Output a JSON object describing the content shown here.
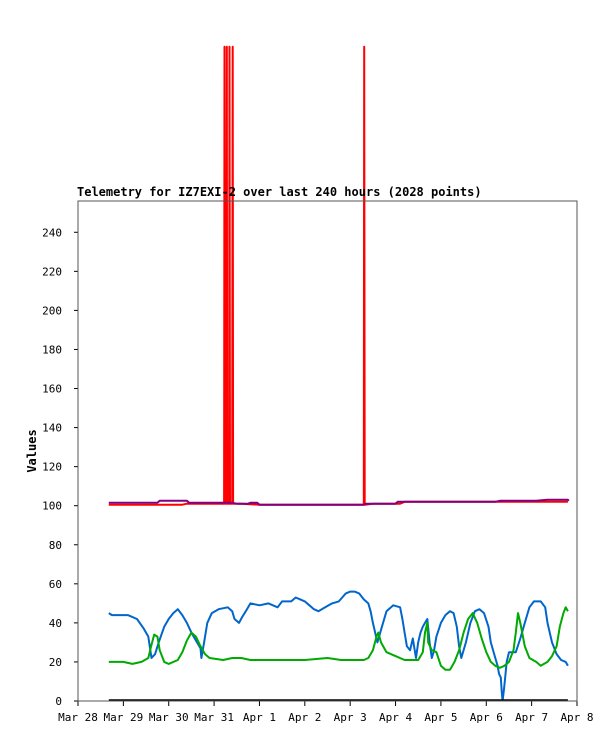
{
  "chart_data": {
    "type": "line",
    "title": "Telemetry for IZ7EXI-2 over last 240 hours (2028 points)",
    "ylabel": "Values",
    "xlabel": "",
    "ylim": [
      0,
      255
    ],
    "xlim": [
      0,
      11
    ],
    "y_ticks": [
      0,
      20,
      40,
      60,
      80,
      100,
      120,
      140,
      160,
      180,
      200,
      220,
      240
    ],
    "x_ticks": [
      {
        "x": 0,
        "label": "Mar 28"
      },
      {
        "x": 1,
        "label": "Mar 29"
      },
      {
        "x": 2,
        "label": "Mar 30"
      },
      {
        "x": 3,
        "label": "Mar 31"
      },
      {
        "x": 4,
        "label": "Apr 1"
      },
      {
        "x": 5,
        "label": "Apr 2"
      },
      {
        "x": 6,
        "label": "Apr 3"
      },
      {
        "x": 7,
        "label": "Apr 4"
      },
      {
        "x": 8,
        "label": "Apr 5"
      },
      {
        "x": 9,
        "label": "Apr 6"
      },
      {
        "x": 10,
        "label": "Apr 7"
      },
      {
        "x": 11,
        "label": "Apr 8"
      }
    ],
    "series": [
      {
        "color": "#ff0000",
        "points": [
          [
            0.68,
            100.5
          ],
          [
            1.8,
            100.5
          ],
          [
            2.3,
            100.5
          ],
          [
            2.4,
            101
          ],
          [
            3.0,
            101
          ],
          [
            3.22,
            101
          ],
          [
            3.23,
            335
          ],
          [
            3.24,
            101
          ],
          [
            3.27,
            101
          ],
          [
            3.28,
            335
          ],
          [
            3.29,
            101
          ],
          [
            3.33,
            101
          ],
          [
            3.34,
            335
          ],
          [
            3.35,
            101
          ],
          [
            3.4,
            101
          ],
          [
            3.41,
            335
          ],
          [
            3.42,
            101
          ],
          [
            3.6,
            101
          ],
          [
            4.0,
            100.5
          ],
          [
            6.3,
            100.5
          ],
          [
            6.31,
            335
          ],
          [
            6.32,
            100.5
          ],
          [
            6.5,
            101
          ],
          [
            7.1,
            101
          ],
          [
            7.2,
            102
          ],
          [
            9.0,
            102
          ],
          [
            9.5,
            102
          ],
          [
            10.4,
            102
          ],
          [
            10.8,
            102
          ]
        ]
      },
      {
        "color": "#800080",
        "points": [
          [
            0.68,
            101.5
          ],
          [
            1.75,
            101.5
          ],
          [
            1.8,
            102.5
          ],
          [
            2.4,
            102.5
          ],
          [
            2.45,
            101.5
          ],
          [
            3.4,
            101.5
          ],
          [
            3.5,
            101
          ],
          [
            3.75,
            101
          ],
          [
            3.8,
            101.5
          ],
          [
            3.95,
            101.5
          ],
          [
            4.0,
            100.5
          ],
          [
            6.3,
            100.5
          ],
          [
            6.35,
            101
          ],
          [
            7.0,
            101
          ],
          [
            7.05,
            102
          ],
          [
            9.2,
            102
          ],
          [
            9.3,
            102.5
          ],
          [
            10.1,
            102.5
          ],
          [
            10.35,
            103
          ],
          [
            10.8,
            103
          ],
          [
            10.82,
            102.5
          ]
        ]
      },
      {
        "color": "#0066cc",
        "points": [
          [
            0.68,
            45
          ],
          [
            0.75,
            44
          ],
          [
            1.1,
            44
          ],
          [
            1.3,
            42
          ],
          [
            1.45,
            37
          ],
          [
            1.55,
            33
          ],
          [
            1.62,
            22
          ],
          [
            1.7,
            24
          ],
          [
            1.78,
            30
          ],
          [
            1.9,
            38
          ],
          [
            2.0,
            42
          ],
          [
            2.1,
            45
          ],
          [
            2.2,
            47
          ],
          [
            2.3,
            44
          ],
          [
            2.4,
            40
          ],
          [
            2.5,
            35
          ],
          [
            2.6,
            31
          ],
          [
            2.7,
            27
          ],
          [
            2.72,
            22
          ],
          [
            2.78,
            30
          ],
          [
            2.85,
            40
          ],
          [
            2.95,
            45
          ],
          [
            3.1,
            47
          ],
          [
            3.3,
            48
          ],
          [
            3.4,
            46
          ],
          [
            3.45,
            42
          ],
          [
            3.55,
            40
          ],
          [
            3.62,
            43
          ],
          [
            3.7,
            46
          ],
          [
            3.8,
            50
          ],
          [
            4.0,
            49
          ],
          [
            4.2,
            50
          ],
          [
            4.4,
            48
          ],
          [
            4.5,
            51
          ],
          [
            4.7,
            51
          ],
          [
            4.8,
            53
          ],
          [
            4.9,
            52
          ],
          [
            5.0,
            51
          ],
          [
            5.1,
            49
          ],
          [
            5.2,
            47
          ],
          [
            5.3,
            46
          ],
          [
            5.45,
            48
          ],
          [
            5.6,
            50
          ],
          [
            5.75,
            51
          ],
          [
            5.9,
            55
          ],
          [
            6.0,
            56
          ],
          [
            6.1,
            56
          ],
          [
            6.2,
            55
          ],
          [
            6.3,
            52
          ],
          [
            6.4,
            50
          ],
          [
            6.45,
            46
          ],
          [
            6.5,
            40
          ],
          [
            6.6,
            30
          ],
          [
            6.7,
            38
          ],
          [
            6.8,
            46
          ],
          [
            6.95,
            49
          ],
          [
            7.1,
            48
          ],
          [
            7.15,
            42
          ],
          [
            7.2,
            35
          ],
          [
            7.25,
            28
          ],
          [
            7.32,
            26
          ],
          [
            7.38,
            32
          ],
          [
            7.45,
            22
          ],
          [
            7.5,
            30
          ],
          [
            7.55,
            35
          ],
          [
            7.6,
            38
          ],
          [
            7.65,
            40
          ],
          [
            7.7,
            42
          ],
          [
            7.75,
            30
          ],
          [
            7.8,
            22
          ],
          [
            7.85,
            26
          ],
          [
            7.9,
            33
          ],
          [
            8.0,
            40
          ],
          [
            8.1,
            44
          ],
          [
            8.2,
            46
          ],
          [
            8.28,
            45
          ],
          [
            8.35,
            38
          ],
          [
            8.4,
            28
          ],
          [
            8.45,
            22
          ],
          [
            8.55,
            30
          ],
          [
            8.65,
            40
          ],
          [
            8.75,
            46
          ],
          [
            8.85,
            47
          ],
          [
            8.95,
            45
          ],
          [
            9.05,
            38
          ],
          [
            9.1,
            30
          ],
          [
            9.2,
            22
          ],
          [
            9.25,
            18
          ],
          [
            9.28,
            14
          ],
          [
            9.32,
            12
          ],
          [
            9.34,
            5
          ],
          [
            9.36,
            0
          ],
          [
            9.4,
            8
          ],
          [
            9.45,
            20
          ],
          [
            9.5,
            25
          ],
          [
            9.65,
            25
          ],
          [
            9.75,
            32
          ],
          [
            9.85,
            40
          ],
          [
            9.95,
            48
          ],
          [
            10.05,
            51
          ],
          [
            10.2,
            51
          ],
          [
            10.3,
            48
          ],
          [
            10.35,
            40
          ],
          [
            10.45,
            30
          ],
          [
            10.55,
            24
          ],
          [
            10.65,
            21
          ],
          [
            10.75,
            20
          ],
          [
            10.8,
            18
          ]
        ]
      },
      {
        "color": "#00aa00",
        "points": [
          [
            0.68,
            20
          ],
          [
            1.0,
            20
          ],
          [
            1.2,
            19
          ],
          [
            1.4,
            20
          ],
          [
            1.55,
            22
          ],
          [
            1.6,
            27
          ],
          [
            1.68,
            34
          ],
          [
            1.75,
            33
          ],
          [
            1.8,
            26
          ],
          [
            1.9,
            20
          ],
          [
            2.0,
            19
          ],
          [
            2.2,
            21
          ],
          [
            2.3,
            25
          ],
          [
            2.4,
            31
          ],
          [
            2.5,
            35
          ],
          [
            2.6,
            33
          ],
          [
            2.7,
            28
          ],
          [
            2.8,
            24
          ],
          [
            2.9,
            22
          ],
          [
            3.2,
            21
          ],
          [
            3.4,
            22
          ],
          [
            3.6,
            22
          ],
          [
            3.8,
            21
          ],
          [
            4.0,
            21
          ],
          [
            4.5,
            21
          ],
          [
            5.0,
            21
          ],
          [
            5.5,
            22
          ],
          [
            5.8,
            21
          ],
          [
            6.0,
            21
          ],
          [
            6.3,
            21
          ],
          [
            6.4,
            22
          ],
          [
            6.5,
            26
          ],
          [
            6.58,
            33
          ],
          [
            6.62,
            35
          ],
          [
            6.68,
            30
          ],
          [
            6.8,
            25
          ],
          [
            7.0,
            23
          ],
          [
            7.2,
            21
          ],
          [
            7.5,
            21
          ],
          [
            7.6,
            25
          ],
          [
            7.65,
            35
          ],
          [
            7.7,
            40
          ],
          [
            7.72,
            30
          ],
          [
            7.8,
            26
          ],
          [
            7.9,
            25
          ],
          [
            8.0,
            18
          ],
          [
            8.1,
            16
          ],
          [
            8.2,
            16
          ],
          [
            8.3,
            20
          ],
          [
            8.4,
            26
          ],
          [
            8.5,
            35
          ],
          [
            8.6,
            42
          ],
          [
            8.7,
            45
          ],
          [
            8.8,
            40
          ],
          [
            8.9,
            32
          ],
          [
            9.0,
            25
          ],
          [
            9.1,
            20
          ],
          [
            9.2,
            18
          ],
          [
            9.3,
            17
          ],
          [
            9.4,
            18
          ],
          [
            9.5,
            20
          ],
          [
            9.6,
            26
          ],
          [
            9.65,
            35
          ],
          [
            9.7,
            45
          ],
          [
            9.75,
            40
          ],
          [
            9.85,
            28
          ],
          [
            9.95,
            22
          ],
          [
            10.1,
            20
          ],
          [
            10.2,
            18
          ],
          [
            10.35,
            20
          ],
          [
            10.45,
            23
          ],
          [
            10.55,
            28
          ],
          [
            10.62,
            38
          ],
          [
            10.7,
            45
          ],
          [
            10.75,
            48
          ],
          [
            10.8,
            46
          ]
        ]
      },
      {
        "color": "#000000",
        "points": [
          [
            0.68,
            0.4
          ],
          [
            10.8,
            0.4
          ]
        ]
      }
    ]
  }
}
